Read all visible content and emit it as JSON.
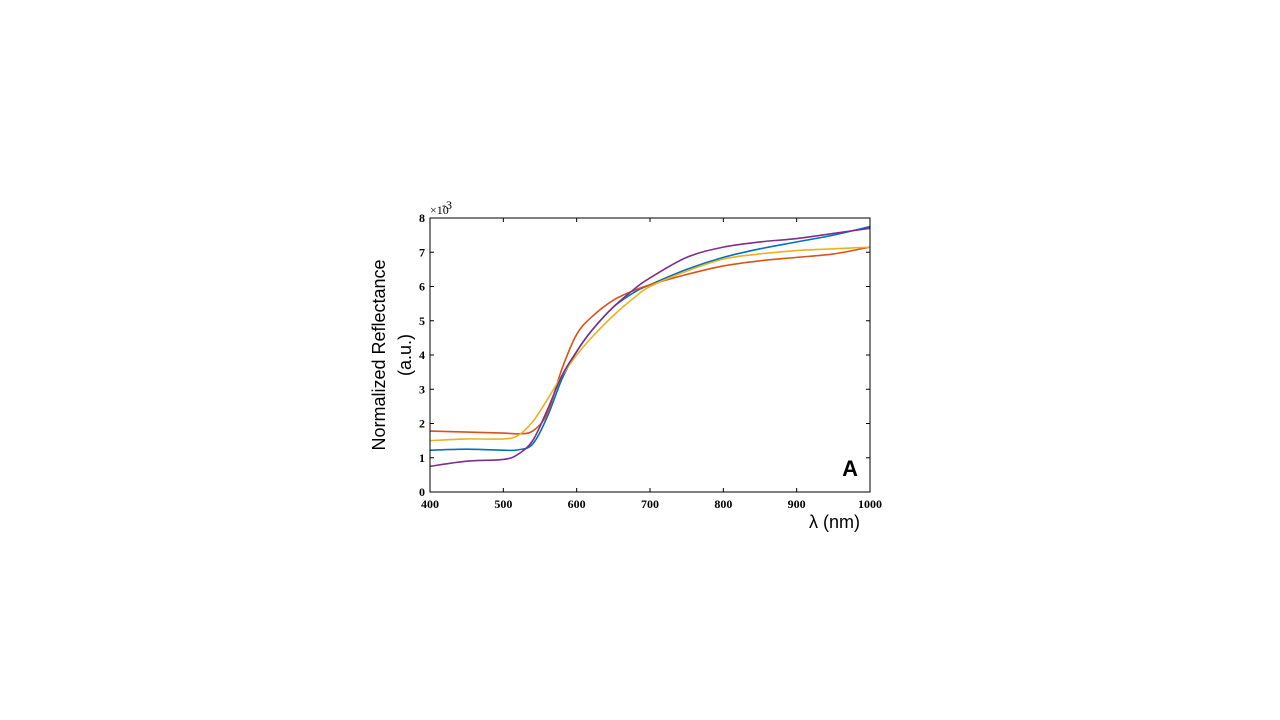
{
  "chart_data": {
    "type": "line",
    "xlabel": "λ (nm)",
    "ylabel_line1": "Normalized Reflectance",
    "ylabel_line2": "(a.u.)",
    "y_multiplier": "×10",
    "y_exponent": "-3",
    "panel_label": "A",
    "xlim": [
      400,
      1000
    ],
    "ylim": [
      0,
      8
    ],
    "x_ticks": [
      400,
      500,
      600,
      700,
      800,
      900,
      1000
    ],
    "y_ticks": [
      0,
      1,
      2,
      3,
      4,
      5,
      6,
      7,
      8
    ],
    "grid": false,
    "legend": "none",
    "x": [
      400,
      450,
      500,
      520,
      540,
      560,
      580,
      600,
      620,
      650,
      680,
      700,
      750,
      800,
      850,
      900,
      950,
      1000
    ],
    "series": [
      {
        "color": "#0072BD",
        "values": [
          1.22,
          1.25,
          1.22,
          1.23,
          1.4,
          2.2,
          3.3,
          4.1,
          4.7,
          5.4,
          5.85,
          6.05,
          6.5,
          6.85,
          7.1,
          7.3,
          7.5,
          7.75
        ]
      },
      {
        "color": "#D95319",
        "values": [
          1.78,
          1.75,
          1.72,
          1.7,
          1.78,
          2.3,
          3.6,
          4.6,
          5.1,
          5.6,
          5.9,
          6.05,
          6.35,
          6.6,
          6.75,
          6.85,
          6.95,
          7.15
        ]
      },
      {
        "color": "#EDB120",
        "values": [
          1.5,
          1.55,
          1.55,
          1.65,
          2.05,
          2.7,
          3.4,
          4.0,
          4.5,
          5.15,
          5.7,
          6.0,
          6.45,
          6.8,
          6.95,
          7.05,
          7.1,
          7.15
        ]
      },
      {
        "color": "#7E2F8E",
        "values": [
          0.75,
          0.9,
          0.95,
          1.1,
          1.5,
          2.4,
          3.4,
          4.1,
          4.7,
          5.4,
          5.95,
          6.25,
          6.85,
          7.15,
          7.3,
          7.4,
          7.55,
          7.7
        ]
      }
    ]
  }
}
